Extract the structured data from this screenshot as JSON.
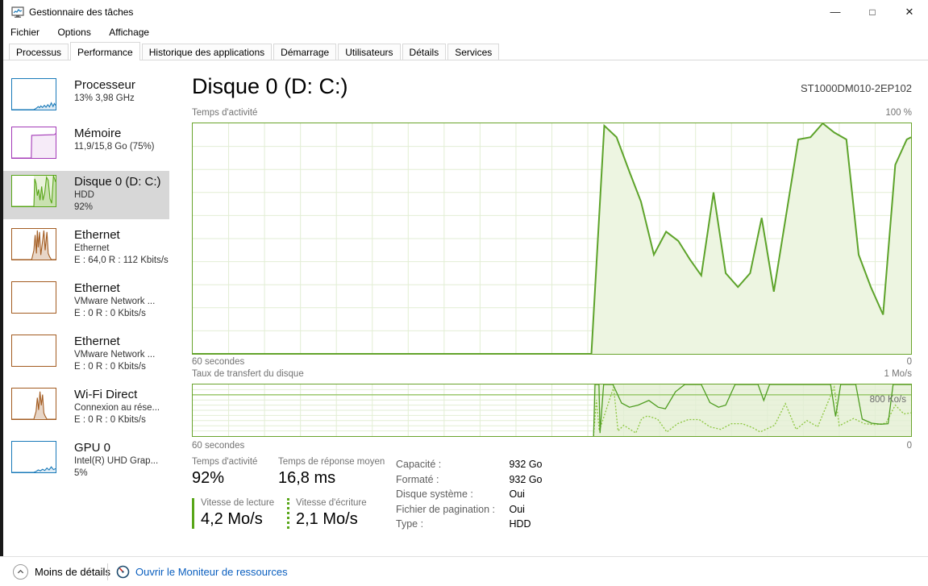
{
  "window": {
    "title": "Gestionnaire des tâches",
    "controls": {
      "minimize": "—",
      "maximize": "□",
      "close": "✕"
    }
  },
  "menu": {
    "items": [
      "Fichier",
      "Options",
      "Affichage"
    ]
  },
  "tabs": {
    "active_index": 1,
    "items": [
      {
        "label": "Processus"
      },
      {
        "label": "Performance"
      },
      {
        "label": "Historique des applications"
      },
      {
        "label": "Démarrage"
      },
      {
        "label": "Utilisateurs"
      },
      {
        "label": "Détails"
      },
      {
        "label": "Services"
      }
    ]
  },
  "sidebar": {
    "items": [
      {
        "title": "Processeur",
        "line2": "13% 3,98 GHz",
        "line3": "",
        "selected": false,
        "color": "blue"
      },
      {
        "title": "Mémoire",
        "line2": "11,9/15,8 Go (75%)",
        "line3": "",
        "selected": false,
        "color": "purple"
      },
      {
        "title": "Disque 0 (D: C:)",
        "line2": "HDD",
        "line3": "92%",
        "selected": true,
        "color": "green"
      },
      {
        "title": "Ethernet",
        "line2": "Ethernet",
        "line3": "E : 64,0 R : 112 Kbits/s",
        "selected": false,
        "color": "brown"
      },
      {
        "title": "Ethernet",
        "line2": "VMware Network ...",
        "line3": "E : 0 R : 0 Kbits/s",
        "selected": false,
        "color": "brown"
      },
      {
        "title": "Ethernet",
        "line2": "VMware Network ...",
        "line3": "E : 0 R : 0 Kbits/s",
        "selected": false,
        "color": "brown"
      },
      {
        "title": "Wi-Fi Direct",
        "line2": "Connexion au rése...",
        "line3": "E : 0 R : 0 Kbits/s",
        "selected": false,
        "color": "brown"
      },
      {
        "title": "GPU 0",
        "line2": "Intel(R) UHD Grap...",
        "line3": "5%",
        "selected": false,
        "color": "blue"
      }
    ]
  },
  "main": {
    "title": "Disque 0 (D: C:)",
    "device": "ST1000DM010-2EP102"
  },
  "stats": {
    "activity_label": "Temps d'activité",
    "activity_value": "92%",
    "response_label": "Temps de réponse moyen",
    "response_value": "16,8 ms",
    "read_label": "Vitesse de lecture",
    "read_value": "4,2 Mo/s",
    "write_label": "Vitesse d'écriture",
    "write_value": "2,1 Mo/s",
    "details": [
      {
        "label": "Capacité :",
        "value": "932 Go"
      },
      {
        "label": "Formaté :",
        "value": "932 Go"
      },
      {
        "label": "Disque système :",
        "value": "Oui"
      },
      {
        "label": "Fichier de pagination :",
        "value": "Oui"
      },
      {
        "label": "Type :",
        "value": "HDD"
      }
    ]
  },
  "footer": {
    "less_details": "Moins de détails",
    "open_monitor": "Ouvrir le Moniteur de ressources",
    "icons": [
      "chevron-up-circle-icon",
      "resource-monitor-gauge-icon"
    ]
  },
  "colors": {
    "disk_green": "#58a618",
    "chart_border_green": "#69a42c",
    "grid_green": "#e2eed4",
    "area_fill_green": "#edf5e1",
    "active_region_green": "#e9f2db",
    "line_green_dark": "#4f9d21",
    "line_green_light": "#8cc63f",
    "cpu_blue": "#1a7ab9",
    "memory_purple": "#a43bb8",
    "ethernet_brown": "#a35c21",
    "link_blue": "#0b5fbf",
    "selected_bg": "#d7d7d7"
  },
  "chart_data": [
    {
      "id": "activity",
      "type": "area",
      "title": "Temps d'activité",
      "y_max_label": "100 %",
      "x_left_label": "60 secondes",
      "x_right_label": "0",
      "ylim": [
        0,
        100
      ],
      "x_span_seconds": 60,
      "grid": true,
      "points": [
        [
          0,
          0
        ],
        [
          0.555,
          0
        ],
        [
          0.573,
          99
        ],
        [
          0.59,
          94
        ],
        [
          0.608,
          79
        ],
        [
          0.624,
          66
        ],
        [
          0.642,
          43
        ],
        [
          0.659,
          53
        ],
        [
          0.676,
          49
        ],
        [
          0.692,
          41
        ],
        [
          0.708,
          34
        ],
        [
          0.725,
          70
        ],
        [
          0.742,
          35
        ],
        [
          0.759,
          29
        ],
        [
          0.776,
          35
        ],
        [
          0.792,
          59
        ],
        [
          0.809,
          27
        ],
        [
          0.843,
          93
        ],
        [
          0.86,
          94
        ],
        [
          0.877,
          100
        ],
        [
          0.893,
          96
        ],
        [
          0.91,
          93
        ],
        [
          0.927,
          43
        ],
        [
          0.944,
          29
        ],
        [
          0.961,
          17
        ],
        [
          0.978,
          82
        ],
        [
          0.994,
          93
        ],
        [
          1,
          94
        ]
      ]
    },
    {
      "id": "transfer",
      "type": "line",
      "title": "Taux de transfert du disque",
      "y_max_label": "1 Mo/s",
      "inner_y_label": "800 Ko/s",
      "x_left_label": "60 secondes",
      "x_right_label": "0",
      "ylim": [
        0,
        1000
      ],
      "active_from": 0.558,
      "grid": true,
      "series": [
        {
          "name": "Vitesse de lecture",
          "style": "solid",
          "points": [
            [
              0.558,
              0
            ],
            [
              0.56,
              1000
            ],
            [
              0.5655,
              1000
            ],
            [
              0.567,
              60
            ],
            [
              0.572,
              1000
            ],
            [
              0.585,
              1000
            ],
            [
              0.597,
              640
            ],
            [
              0.608,
              560
            ],
            [
              0.62,
              600
            ],
            [
              0.635,
              690
            ],
            [
              0.648,
              560
            ],
            [
              0.658,
              530
            ],
            [
              0.672,
              860
            ],
            [
              0.685,
              1000
            ],
            [
              0.708,
              1000
            ],
            [
              0.72,
              650
            ],
            [
              0.732,
              560
            ],
            [
              0.742,
              600
            ],
            [
              0.755,
              1000
            ],
            [
              0.787,
              1000
            ],
            [
              0.795,
              690
            ],
            [
              0.803,
              1000
            ],
            [
              0.888,
              1000
            ],
            [
              0.895,
              380
            ],
            [
              0.902,
              1000
            ],
            [
              0.923,
              1000
            ],
            [
              0.932,
              330
            ],
            [
              0.945,
              250
            ],
            [
              0.958,
              230
            ],
            [
              0.968,
              240
            ],
            [
              0.975,
              1000
            ],
            [
              1,
              1000
            ]
          ]
        },
        {
          "name": "Vitesse d'écriture",
          "style": "dotted",
          "points": [
            [
              0.558,
              0
            ],
            [
              0.562,
              700
            ],
            [
              0.566,
              100
            ],
            [
              0.586,
              950
            ],
            [
              0.592,
              100
            ],
            [
              0.6,
              210
            ],
            [
              0.617,
              60
            ],
            [
              0.625,
              340
            ],
            [
              0.633,
              390
            ],
            [
              0.647,
              330
            ],
            [
              0.66,
              80
            ],
            [
              0.675,
              240
            ],
            [
              0.69,
              320
            ],
            [
              0.705,
              320
            ],
            [
              0.72,
              180
            ],
            [
              0.735,
              130
            ],
            [
              0.75,
              240
            ],
            [
              0.765,
              240
            ],
            [
              0.78,
              160
            ],
            [
              0.79,
              80
            ],
            [
              0.81,
              210
            ],
            [
              0.825,
              630
            ],
            [
              0.84,
              130
            ],
            [
              0.855,
              300
            ],
            [
              0.87,
              180
            ],
            [
              0.893,
              950
            ],
            [
              0.9,
              200
            ],
            [
              0.92,
              340
            ],
            [
              0.935,
              240
            ],
            [
              0.95,
              220
            ],
            [
              0.965,
              250
            ],
            [
              0.978,
              600
            ],
            [
              0.99,
              430
            ],
            [
              1,
              450
            ]
          ]
        }
      ]
    },
    {
      "id": "sparklines",
      "type": "sparklines",
      "ylim": [
        0,
        100
      ],
      "series": {
        "cpu": [
          [
            0,
            0
          ],
          [
            0.5,
            0
          ],
          [
            0.55,
            4
          ],
          [
            0.6,
            10
          ],
          [
            0.63,
            6
          ],
          [
            0.66,
            12
          ],
          [
            0.7,
            7
          ],
          [
            0.74,
            14
          ],
          [
            0.78,
            8
          ],
          [
            0.82,
            16
          ],
          [
            0.86,
            9
          ],
          [
            0.9,
            22
          ],
          [
            0.94,
            10
          ],
          [
            0.97,
            20
          ],
          [
            1,
            14
          ]
        ],
        "memory": [
          [
            0,
            0
          ],
          [
            0.44,
            0
          ],
          [
            0.45,
            74
          ],
          [
            0.97,
            76
          ],
          [
            1,
            80
          ]
        ],
        "disk": [
          [
            0,
            0
          ],
          [
            0.5,
            0
          ],
          [
            0.52,
            90
          ],
          [
            0.55,
            75
          ],
          [
            0.58,
            35
          ],
          [
            0.61,
            55
          ],
          [
            0.64,
            20
          ],
          [
            0.68,
            65
          ],
          [
            0.71,
            20
          ],
          [
            0.75,
            45
          ],
          [
            0.79,
            95
          ],
          [
            0.83,
            85
          ],
          [
            0.87,
            25
          ],
          [
            0.91,
            10
          ],
          [
            0.95,
            100
          ],
          [
            1,
            80
          ]
        ],
        "ethernet1": [
          [
            0,
            0
          ],
          [
            0.45,
            0
          ],
          [
            0.5,
            30
          ],
          [
            0.53,
            80
          ],
          [
            0.56,
            20
          ],
          [
            0.58,
            95
          ],
          [
            0.6,
            40
          ],
          [
            0.63,
            90
          ],
          [
            0.66,
            15
          ],
          [
            0.7,
            60
          ],
          [
            0.73,
            95
          ],
          [
            0.76,
            30
          ],
          [
            0.8,
            90
          ],
          [
            0.83,
            20
          ],
          [
            0.86,
            10
          ],
          [
            0.9,
            0
          ],
          [
            1,
            0
          ]
        ],
        "ethernet2": [],
        "ethernet3": [],
        "wifi": [
          [
            0,
            0
          ],
          [
            0.5,
            0
          ],
          [
            0.55,
            25
          ],
          [
            0.58,
            70
          ],
          [
            0.61,
            30
          ],
          [
            0.64,
            90
          ],
          [
            0.67,
            45
          ],
          [
            0.7,
            80
          ],
          [
            0.73,
            20
          ],
          [
            0.76,
            10
          ],
          [
            0.8,
            0
          ],
          [
            1,
            0
          ]
        ],
        "gpu": [
          [
            0,
            0
          ],
          [
            0.5,
            0
          ],
          [
            0.55,
            3
          ],
          [
            0.6,
            8
          ],
          [
            0.65,
            5
          ],
          [
            0.7,
            10
          ],
          [
            0.75,
            6
          ],
          [
            0.8,
            14
          ],
          [
            0.85,
            8
          ],
          [
            0.9,
            18
          ],
          [
            0.95,
            9
          ],
          [
            1,
            12
          ]
        ]
      }
    }
  ]
}
